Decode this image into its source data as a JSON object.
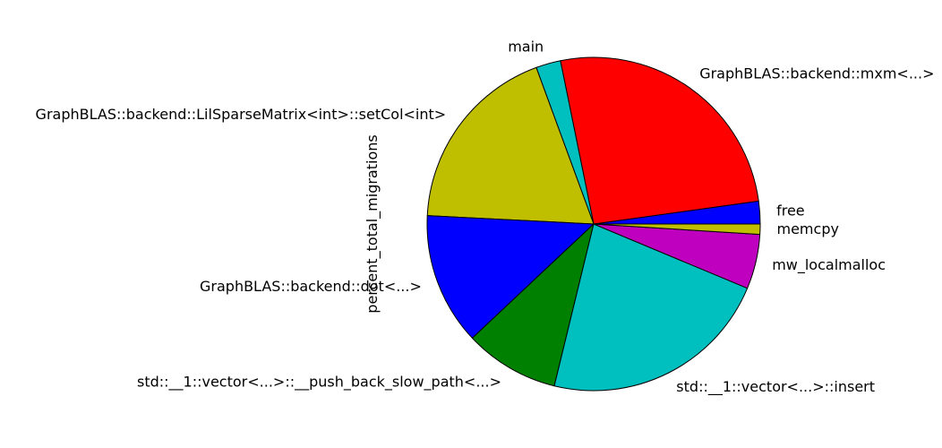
{
  "chart_data": {
    "type": "pie",
    "title": "",
    "ylabel": "percent_total_migrations",
    "start_angle_deg": 0,
    "direction": "counterclockwise",
    "slices": [
      {
        "label": "free",
        "value": 2.2,
        "color": "#0000ff"
      },
      {
        "label": "GraphBLAS::backend::mxm<...>",
        "value": 26.0,
        "color": "#ff0000"
      },
      {
        "label": "main",
        "value": 2.4,
        "color": "#00bfbf"
      },
      {
        "label": "GraphBLAS::backend::LilSparseMatrix<int>::setCol<int>",
        "value": 18.6,
        "color": "#bfbf00"
      },
      {
        "label": "GraphBLAS::backend::dot<...>",
        "value": 12.8,
        "color": "#0000ff"
      },
      {
        "label": "std::__1::vector<...>::__push_back_slow_path<...>",
        "value": 9.2,
        "color": "#008000"
      },
      {
        "label": "std::__1::vector<...>::insert",
        "value": 22.5,
        "color": "#00bfbf"
      },
      {
        "label": "mw_localmalloc",
        "value": 5.3,
        "color": "#bf00bf"
      },
      {
        "label": "memcpy",
        "value": 1.0,
        "color": "#bfbf00"
      }
    ]
  }
}
